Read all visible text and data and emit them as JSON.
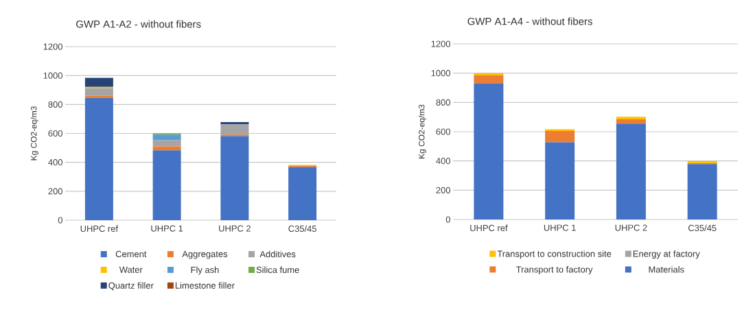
{
  "chart_data": [
    {
      "type": "bar",
      "stacked": true,
      "title": "GWP A1-A2 - without fibers",
      "ylabel": "Kg CO2-eq/m3",
      "categories": [
        "UHPC ref",
        "UHPC 1",
        "UHPC 2",
        "C35/45"
      ],
      "ylim": [
        0,
        1200
      ],
      "yticks": [
        0,
        200,
        400,
        600,
        800,
        1000,
        1200
      ],
      "grid": "y",
      "legend": "bottom",
      "series": [
        {
          "name": "Cement",
          "color": "#4472c4",
          "values": [
            845,
            483,
            581,
            366
          ]
        },
        {
          "name": "Aggregates",
          "color": "#ed7d31",
          "values": [
            16,
            27,
            11,
            10
          ]
        },
        {
          "name": "Additives",
          "color": "#a5a5a5",
          "values": [
            52,
            43,
            71,
            0
          ]
        },
        {
          "name": "Water",
          "color": "#ffc000",
          "values": [
            8,
            0,
            0,
            6
          ]
        },
        {
          "name": "Fly ash",
          "color": "#5b9bd5",
          "values": [
            0,
            39,
            0,
            0
          ]
        },
        {
          "name": "Silica fume",
          "color": "#70ad47",
          "values": [
            0,
            8,
            0,
            0
          ]
        },
        {
          "name": "Quartz filler",
          "color": "#264478",
          "values": [
            63,
            0,
            15,
            0
          ]
        },
        {
          "name": "Limestone filler",
          "color": "#9e480e",
          "values": [
            0,
            0,
            null,
            0
          ]
        }
      ]
    },
    {
      "type": "bar",
      "stacked": true,
      "title": "GWP A1-A4 - without fibers",
      "ylabel": "Kg CO2-eq/m3",
      "categories": [
        "UHPC ref",
        "UHPC 1",
        "UHPC 2",
        "C35/45"
      ],
      "ylim": [
        0,
        1200
      ],
      "yticks": [
        0,
        200,
        400,
        600,
        800,
        1000,
        1200
      ],
      "grid": "y",
      "legend": "bottom",
      "series": [
        {
          "name": "Materials",
          "color": "#4472c4",
          "values": [
            930,
            527,
            655,
            378
          ]
        },
        {
          "name": "Transport to factory",
          "color": "#ed7d31",
          "values": [
            55,
            78,
            29,
            6
          ]
        },
        {
          "name": "Energy at factory",
          "color": "#a5a5a5",
          "values": [
            0,
            0,
            null,
            0
          ]
        },
        {
          "name": "Transport to construction site",
          "color": "#ffc000",
          "values": [
            15,
            11,
            18,
            16
          ]
        }
      ]
    }
  ]
}
